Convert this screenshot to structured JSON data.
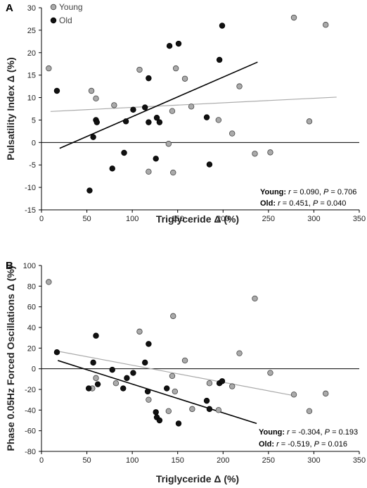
{
  "chart_data": [
    {
      "panel": "A",
      "type": "scatter",
      "xlabel": "Triglyceride Δ (%)",
      "ylabel": "Pulsatility Index Δ (%)",
      "xlim": [
        0,
        350
      ],
      "ylim": [
        -15,
        30
      ],
      "xticks": [
        "0",
        "50",
        "100",
        "150",
        "200",
        "250",
        "300",
        "350"
      ],
      "yticks": [
        "-15",
        "-10",
        "-5",
        "0",
        "5",
        "10",
        "15",
        "20",
        "25",
        "30"
      ],
      "zero_line": true,
      "legend": {
        "placement": "top-left"
      },
      "series": [
        {
          "name": "Young",
          "color": "#aaaaaa",
          "points": [
            [
              8,
              16.5
            ],
            [
              55,
              11.5
            ],
            [
              60,
              9.8
            ],
            [
              80,
              8.3
            ],
            [
              108,
              16.2
            ],
            [
              118,
              -6.5
            ],
            [
              140,
              -0.3
            ],
            [
              144,
              7
            ],
            [
              145,
              -6.7
            ],
            [
              148,
              16.5
            ],
            [
              158,
              14.2
            ],
            [
              165,
              8
            ],
            [
              195,
              5
            ],
            [
              210,
              2
            ],
            [
              218,
              12.5
            ],
            [
              235,
              -2.5
            ],
            [
              252,
              -2.2
            ],
            [
              278,
              27.8
            ],
            [
              295,
              4.7
            ],
            [
              313,
              26.2
            ]
          ],
          "fit": {
            "x": [
              10,
              325
            ],
            "y": [
              6.9,
              10.1
            ]
          },
          "stats": {
            "r": "0.090",
            "P": "0.706"
          }
        },
        {
          "name": "Old",
          "color": "#111111",
          "points": [
            [
              17,
              11.5
            ],
            [
              53,
              -10.7
            ],
            [
              57,
              1.2
            ],
            [
              60,
              5
            ],
            [
              61,
              4.5
            ],
            [
              78,
              -5.8
            ],
            [
              91,
              -2.3
            ],
            [
              93,
              4.7
            ],
            [
              101,
              7.3
            ],
            [
              114,
              7.8
            ],
            [
              118,
              4.5
            ],
            [
              118,
              14.3
            ],
            [
              126,
              -3.6
            ],
            [
              127,
              5.5
            ],
            [
              130,
              4.5
            ],
            [
              141,
              21.5
            ],
            [
              151,
              22
            ],
            [
              182,
              5.6
            ],
            [
              185,
              -4.9
            ],
            [
              196,
              18.4
            ],
            [
              199,
              26
            ]
          ],
          "fit": {
            "x": [
              20,
              238
            ],
            "y": [
              -1.3,
              17.9
            ]
          },
          "stats": {
            "r": "0.451",
            "P": "0.040"
          }
        }
      ]
    },
    {
      "panel": "B",
      "type": "scatter",
      "xlabel": "Triglyceride Δ (%)",
      "ylabel": "Phase 0.05Hz Forced Oscillations Δ (%)",
      "xlim": [
        0,
        350
      ],
      "ylim": [
        -80,
        100
      ],
      "xticks": [
        "0",
        "50",
        "100",
        "150",
        "200",
        "250",
        "300",
        "350"
      ],
      "yticks": [
        "-80",
        "-60",
        "-40",
        "-20",
        "0",
        "20",
        "40",
        "60",
        "80",
        "100"
      ],
      "zero_line": true,
      "series": [
        {
          "name": "Young",
          "color": "#aaaaaa",
          "points": [
            [
              8,
              84
            ],
            [
              56,
              -19
            ],
            [
              60,
              -9
            ],
            [
              82,
              -14
            ],
            [
              108,
              36
            ],
            [
              118,
              -30
            ],
            [
              140,
              -41
            ],
            [
              144,
              -7
            ],
            [
              145,
              51
            ],
            [
              147,
              -22
            ],
            [
              158,
              8
            ],
            [
              166,
              -39
            ],
            [
              185,
              -14
            ],
            [
              195,
              -40
            ],
            [
              210,
              -17
            ],
            [
              218,
              15
            ],
            [
              235,
              68
            ],
            [
              252,
              -4
            ],
            [
              278,
              -25
            ],
            [
              295,
              -41
            ],
            [
              313,
              -24
            ]
          ],
          "fit": {
            "x": [
              18,
              278
            ],
            "y": [
              17,
              -26
            ]
          },
          "stats": {
            "r": "-0.304",
            "P": "0.193"
          }
        },
        {
          "name": "Old",
          "color": "#111111",
          "points": [
            [
              17,
              16
            ],
            [
              52,
              -19
            ],
            [
              57,
              6
            ],
            [
              60,
              32
            ],
            [
              62,
              -15
            ],
            [
              78,
              -1
            ],
            [
              90,
              -19
            ],
            [
              94,
              -9
            ],
            [
              101,
              -4
            ],
            [
              114,
              6
            ],
            [
              117,
              -22
            ],
            [
              118,
              24
            ],
            [
              126,
              -42
            ],
            [
              127,
              -47
            ],
            [
              130,
              -50
            ],
            [
              138,
              -19
            ],
            [
              151,
              -53
            ],
            [
              182,
              -31
            ],
            [
              185,
              -39
            ],
            [
              196,
              -14
            ],
            [
              199,
              -12
            ]
          ],
          "fit": {
            "x": [
              18,
              237
            ],
            "y": [
              8,
              -53
            ]
          },
          "stats": {
            "r": "-0.519",
            "P": "0.016"
          }
        }
      ]
    }
  ]
}
